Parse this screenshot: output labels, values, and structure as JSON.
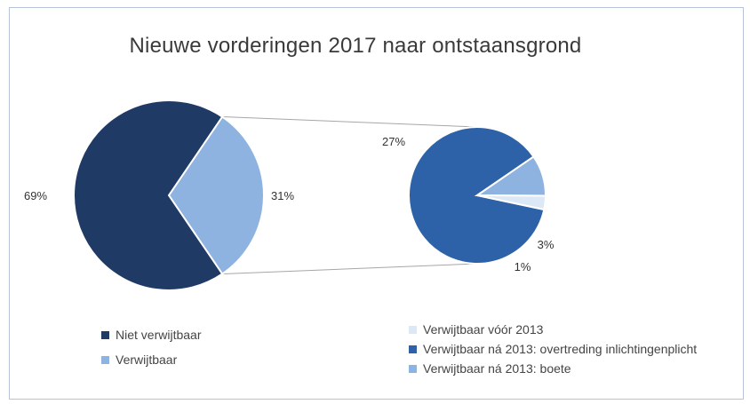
{
  "chart_data": {
    "type": "pie",
    "subtype": "pie-of-pie",
    "title": "Nieuwe vorderingen 2017 naar ontstaansgrond",
    "main_pie": {
      "categories": [
        "Niet verwijtbaar",
        "Verwijtbaar"
      ],
      "values": [
        69,
        31
      ],
      "labels": [
        "69%",
        "31%"
      ],
      "colors": [
        "#1f3a64",
        "#8fb3e0"
      ]
    },
    "secondary_pie": {
      "categories": [
        "Verwijtbaar vóór 2013",
        "Verwijtbaar ná 2013: overtreding inlichtingenplicht",
        "Verwijtbaar ná 2013: boete"
      ],
      "values": [
        1,
        27,
        3
      ],
      "labels": [
        "1%",
        "27%",
        "3%"
      ],
      "colors": [
        "#dce8f5",
        "#2e62a8",
        "#8fb3e0"
      ]
    },
    "legend": {
      "left": [
        "Niet verwijtbaar",
        "Verwijtbaar"
      ],
      "right": [
        "Verwijtbaar vóór 2013",
        "Verwijtbaar ná 2013: overtreding inlichtingenplicht",
        "Verwijtbaar ná 2013: boete"
      ]
    }
  }
}
